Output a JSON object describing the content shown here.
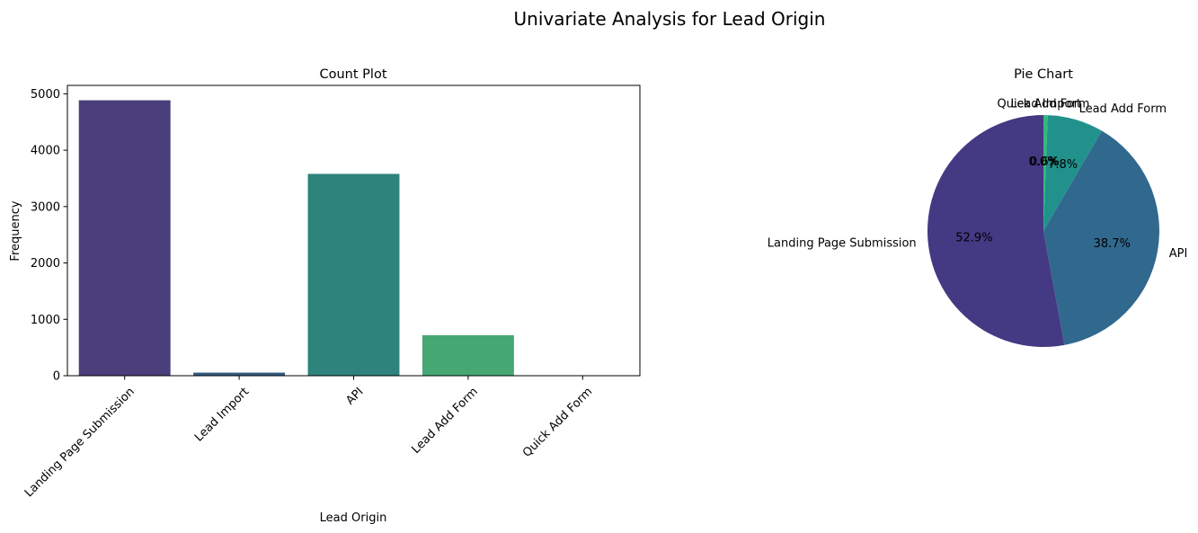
{
  "suptitle": "Univariate Analysis for Lead Origin",
  "chart_data": [
    {
      "type": "bar",
      "title": "Count Plot",
      "xlabel": "Lead Origin",
      "ylabel": "Frequency",
      "categories": [
        "Landing Page Submission",
        "Lead Import",
        "API",
        "Lead Add Form",
        "Quick Add Form"
      ],
      "values": [
        4886,
        55,
        3580,
        718,
        1
      ],
      "colors": [
        "#4a3f7a",
        "#335b81",
        "#2e837c",
        "#45a874",
        "#7ad151"
      ],
      "ylim": [
        0,
        5150
      ],
      "yticks": [
        0,
        1000,
        2000,
        3000,
        4000,
        5000
      ],
      "ytick_labels": [
        "0",
        "1000",
        "2000",
        "3000",
        "4000",
        "5000"
      ],
      "grid": false
    },
    {
      "type": "pie",
      "title": "Pie Chart",
      "labels": [
        "Landing Page Submission",
        "API",
        "Lead Add Form",
        "Lead Import",
        "Quick Add Form"
      ],
      "values": [
        52.9,
        38.7,
        7.8,
        0.6,
        0.0
      ],
      "pct_labels": [
        "52.9%",
        "38.7%",
        "7.8%",
        "0.6%",
        "0.0%"
      ],
      "colors": [
        "#443983",
        "#31688e",
        "#21918c",
        "#35b779",
        "#90d743"
      ],
      "start_angle": 90,
      "clockwise": false
    }
  ]
}
